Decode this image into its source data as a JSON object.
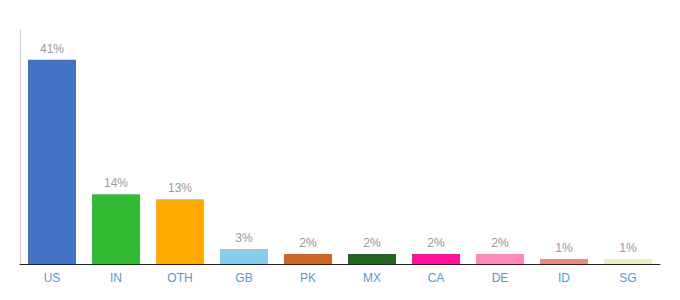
{
  "chart_data": {
    "type": "bar",
    "categories": [
      "US",
      "IN",
      "OTH",
      "GB",
      "PK",
      "MX",
      "CA",
      "DE",
      "ID",
      "SG"
    ],
    "values": [
      41,
      14,
      13,
      3,
      2,
      2,
      2,
      2,
      1,
      1
    ],
    "value_labels": [
      "41%",
      "14%",
      "13%",
      "3%",
      "2%",
      "2%",
      "2%",
      "2%",
      "1%",
      "1%"
    ],
    "colors": [
      "#4472C4",
      "#33BB33",
      "#FFAA00",
      "#88CCEE",
      "#CC6622",
      "#226622",
      "#FF1199",
      "#FF88BB",
      "#EE8877",
      "#EEEEBB"
    ],
    "ylim": [
      0,
      47
    ],
    "data_labels": true,
    "tick_labels": "x",
    "grid": false
  }
}
